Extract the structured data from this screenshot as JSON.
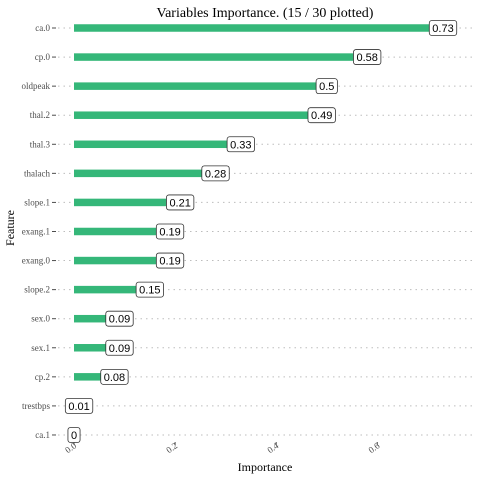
{
  "chart_data": {
    "type": "bar",
    "orientation": "horizontal",
    "title": "Variables Importance. (15 / 30 plotted)",
    "xlabel": "Importance",
    "ylabel": "Feature",
    "categories": [
      "ca.0",
      "cp.0",
      "oldpeak",
      "thal.2",
      "thal.3",
      "thalach",
      "slope.1",
      "exang.1",
      "exang.0",
      "slope.2",
      "sex.0",
      "sex.1",
      "cp.2",
      "trestbps",
      "ca.1"
    ],
    "values": [
      0.73,
      0.58,
      0.5,
      0.49,
      0.33,
      0.28,
      0.21,
      0.19,
      0.19,
      0.15,
      0.09,
      0.09,
      0.08,
      0.01,
      0
    ],
    "value_labels": [
      "0.73",
      "0.58",
      "0.5",
      "0.49",
      "0.33",
      "0.28",
      "0.21",
      "0.19",
      "0.19",
      "0.15",
      "0.09",
      "0.09",
      "0.08",
      "0.01",
      "0"
    ],
    "xticks": [
      0.0,
      0.2,
      0.4,
      0.6
    ],
    "xtick_labels": [
      "0.0",
      "0.2",
      "0.4",
      "0.6"
    ],
    "xlim": [
      0,
      0.73
    ],
    "bar_color": "#35b779",
    "grid": "horizontal dotted",
    "legend": "none"
  }
}
